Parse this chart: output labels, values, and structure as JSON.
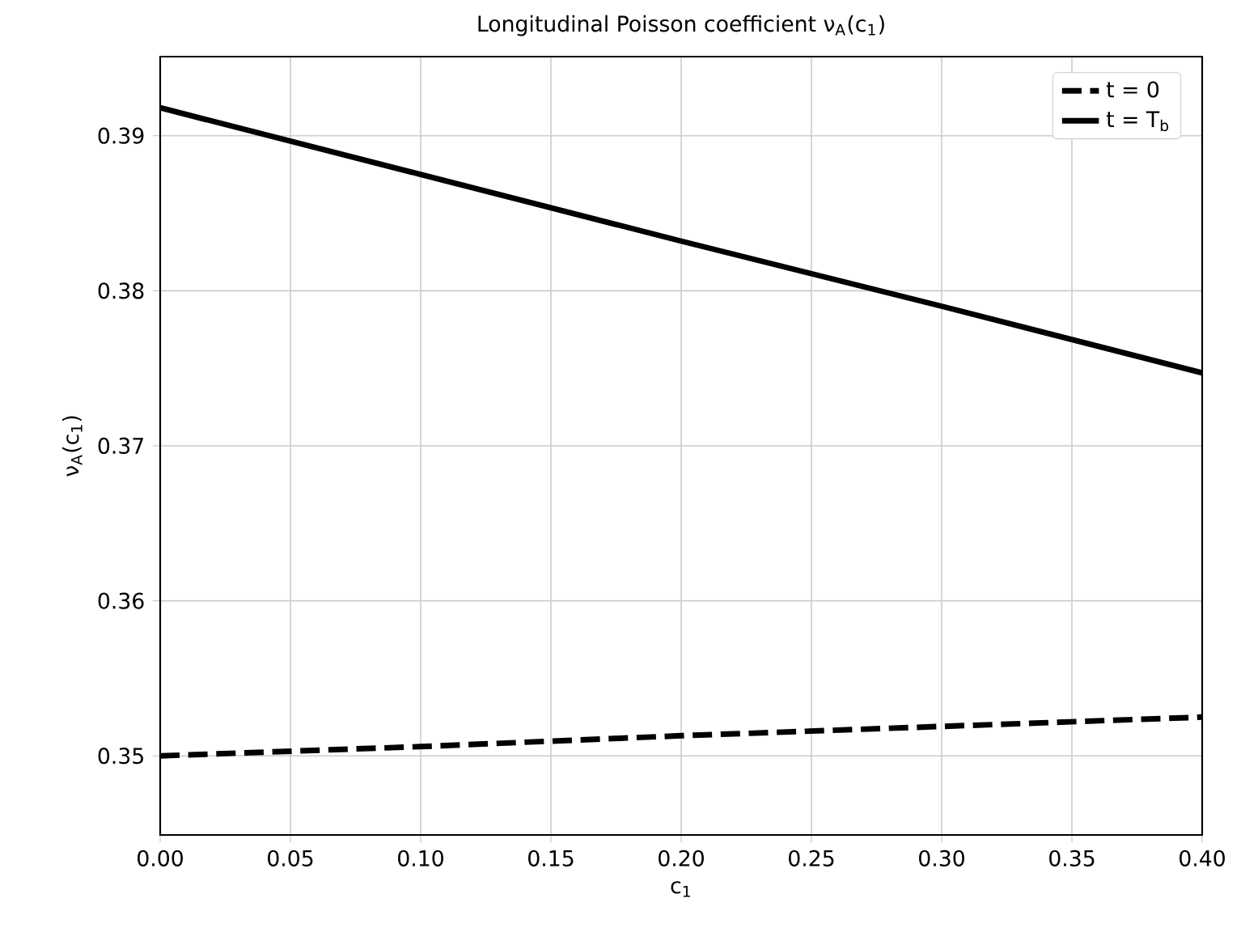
{
  "chart_data": {
    "type": "line",
    "title": "Longitudinal Poisson coefficient ν$_{A}$(c$_{1}$)",
    "xlabel": "c$_{1}$",
    "ylabel": "ν$_{A}$(c$_{1}$)",
    "x": [
      0,
      0.1,
      0.2,
      0.3,
      0.4
    ],
    "series": [
      {
        "name": "t = 0",
        "color": "#000000",
        "line_style": "dashed",
        "values": [
          0.35,
          0.3506,
          0.3513,
          0.3519,
          0.3525
        ]
      },
      {
        "name": "t = T$_{b}$",
        "color": "#000000",
        "line_style": "solid",
        "values": [
          0.3918,
          0.3875,
          0.3832,
          0.379,
          0.3747
        ]
      }
    ],
    "xlim": [
      0,
      0.4
    ],
    "ylim": [
      0.3449,
      0.3951
    ],
    "xticks": [
      {
        "value": 0,
        "label": "0.00"
      },
      {
        "value": 0.05,
        "label": "0.05"
      },
      {
        "value": 0.1,
        "label": "0.10"
      },
      {
        "value": 0.15,
        "label": "0.15"
      },
      {
        "value": 0.2,
        "label": "0.20"
      },
      {
        "value": 0.25,
        "label": "0.25"
      },
      {
        "value": 0.3,
        "label": "0.30"
      },
      {
        "value": 0.35,
        "label": "0.35"
      },
      {
        "value": 0.4,
        "label": "0.40"
      }
    ],
    "yticks": [
      0.35,
      0.36,
      0.37,
      0.38,
      0.39
    ],
    "grid": true,
    "legend": "top right",
    "marker": "none"
  }
}
